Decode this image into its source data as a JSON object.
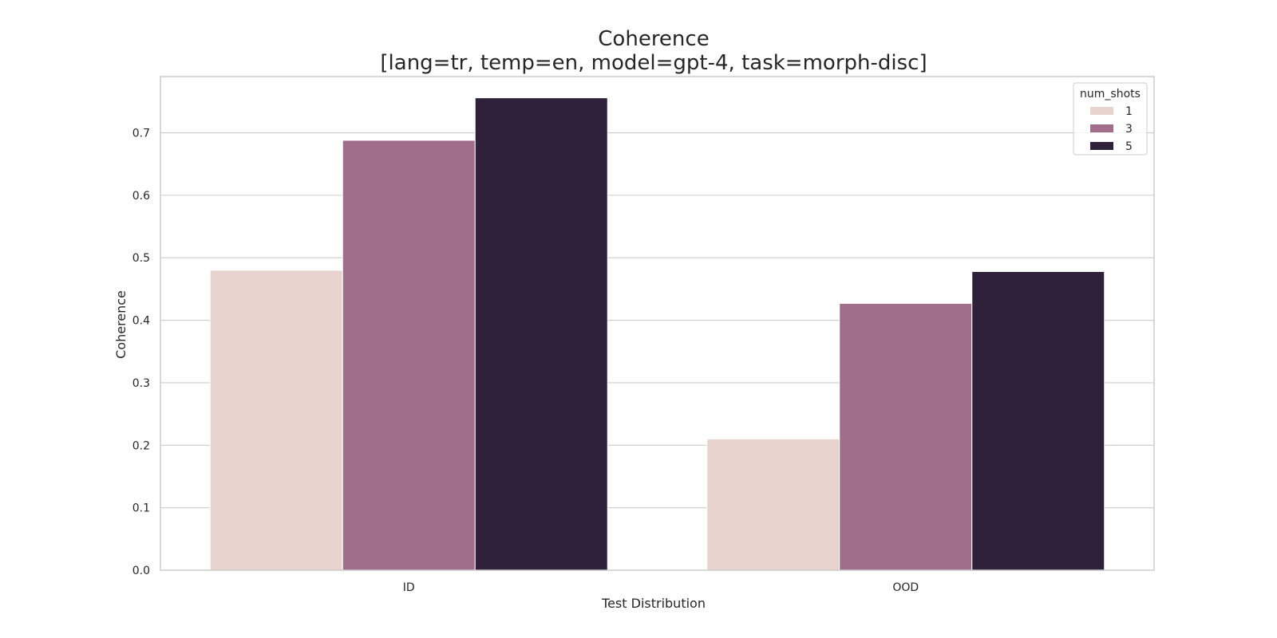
{
  "chart_data": {
    "type": "bar",
    "title": "Coherence",
    "subtitle": "[lang=tr, temp=en, model=gpt-4, task=morph-disc]",
    "xlabel": "Test Distribution",
    "ylabel": "Coherence",
    "categories": [
      "ID",
      "OOD"
    ],
    "ylim": [
      0,
      0.79
    ],
    "yticks": [
      0.0,
      0.1,
      0.2,
      0.3,
      0.4,
      0.5,
      0.6,
      0.7
    ],
    "ytick_labels": [
      "0.0",
      "0.1",
      "0.2",
      "0.3",
      "0.4",
      "0.5",
      "0.6",
      "0.7"
    ],
    "grid": true,
    "legend": {
      "title": "num_shots",
      "placement": "top-right"
    },
    "series": [
      {
        "name": "1",
        "color": "#e8d4cf",
        "values": [
          0.48,
          0.21
        ]
      },
      {
        "name": "3",
        "color": "#a06e8b",
        "values": [
          0.688,
          0.427
        ]
      },
      {
        "name": "5",
        "color": "#2f213a",
        "values": [
          0.756,
          0.478
        ]
      }
    ]
  }
}
